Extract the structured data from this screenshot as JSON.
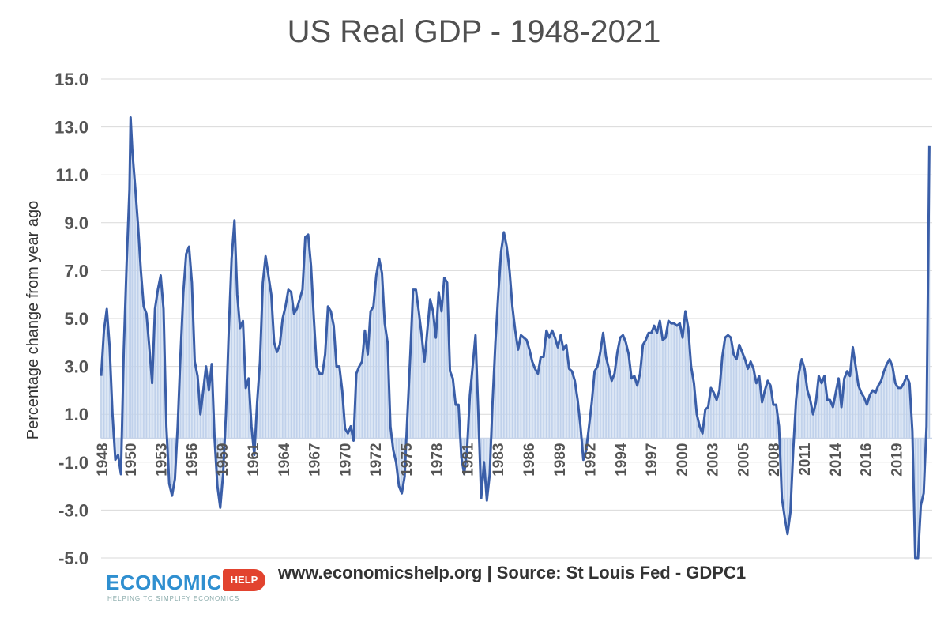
{
  "chart_data": {
    "type": "area",
    "title": "US Real GDP - 1948-2021",
    "xlabel": "",
    "ylabel": "Percentage change from year ago",
    "ylim": [
      -5.0,
      15.0
    ],
    "y_ticks": [
      "15.0",
      "13.0",
      "11.0",
      "9.0",
      "7.0",
      "5.0",
      "3.0",
      "1.0",
      "-1.0",
      "-3.0",
      "-5.0"
    ],
    "y_tick_values": [
      15,
      13,
      11,
      9,
      7,
      5,
      3,
      1,
      -1,
      -3,
      -5
    ],
    "x_tick_labels": [
      "1948",
      "1950",
      "1953",
      "1956",
      "1959",
      "1961",
      "1964",
      "1967",
      "1970",
      "1972",
      "1975",
      "1978",
      "1981",
      "1983",
      "1986",
      "1989",
      "1992",
      "1994",
      "1997",
      "2000",
      "2003",
      "2005",
      "2008",
      "2011",
      "2014",
      "2016",
      "2019"
    ],
    "x_tick_positions": [
      1948,
      1950.5,
      1953.2,
      1955.9,
      1958.6,
      1961.3,
      1964.0,
      1966.7,
      1969.4,
      1972.1,
      1974.8,
      1977.5,
      1980.2,
      1982.9,
      1985.6,
      1988.3,
      1991.0,
      1993.7,
      1996.4,
      1999.1,
      2001.8,
      2004.5,
      2007.2,
      2009.9,
      2012.6,
      2015.3,
      2018.0
    ],
    "xlim": [
      1948,
      2021.25
    ],
    "grid": true,
    "legend": "none",
    "series": [
      {
        "color": "#3a5ea8",
        "fill": "#c5d5ec",
        "points": [
          [
            1948.0,
            2.6
          ],
          [
            1948.25,
            4.5
          ],
          [
            1948.5,
            5.4
          ],
          [
            1948.75,
            3.8
          ],
          [
            1949.0,
            1.0
          ],
          [
            1949.25,
            -0.9
          ],
          [
            1949.5,
            -0.7
          ],
          [
            1949.75,
            -1.5
          ],
          [
            1950.0,
            3.7
          ],
          [
            1950.25,
            7.3
          ],
          [
            1950.5,
            10.4
          ],
          [
            1950.6,
            13.4
          ],
          [
            1950.75,
            12.0
          ],
          [
            1951.0,
            10.5
          ],
          [
            1951.25,
            8.9
          ],
          [
            1951.5,
            7.0
          ],
          [
            1951.75,
            5.5
          ],
          [
            1952.0,
            5.2
          ],
          [
            1952.25,
            3.8
          ],
          [
            1952.5,
            2.3
          ],
          [
            1952.75,
            5.4
          ],
          [
            1953.0,
            6.2
          ],
          [
            1953.25,
            6.8
          ],
          [
            1953.5,
            5.4
          ],
          [
            1953.75,
            0.5
          ],
          [
            1954.0,
            -1.9
          ],
          [
            1954.25,
            -2.4
          ],
          [
            1954.5,
            -1.7
          ],
          [
            1954.75,
            0.5
          ],
          [
            1955.0,
            3.5
          ],
          [
            1955.25,
            6.1
          ],
          [
            1955.5,
            7.7
          ],
          [
            1955.75,
            8.0
          ],
          [
            1956.0,
            6.5
          ],
          [
            1956.25,
            3.2
          ],
          [
            1956.5,
            2.6
          ],
          [
            1956.75,
            1.0
          ],
          [
            1957.0,
            2.0
          ],
          [
            1957.25,
            3.0
          ],
          [
            1957.5,
            2.0
          ],
          [
            1957.75,
            3.1
          ],
          [
            1958.0,
            0.0
          ],
          [
            1958.25,
            -2.0
          ],
          [
            1958.5,
            -2.9
          ],
          [
            1958.75,
            -1.5
          ],
          [
            1959.0,
            1.0
          ],
          [
            1959.25,
            4.5
          ],
          [
            1959.5,
            7.5
          ],
          [
            1959.75,
            9.1
          ],
          [
            1960.0,
            6.0
          ],
          [
            1960.25,
            4.6
          ],
          [
            1960.5,
            4.9
          ],
          [
            1960.75,
            2.1
          ],
          [
            1961.0,
            2.5
          ],
          [
            1961.25,
            0.5
          ],
          [
            1961.5,
            -0.7
          ],
          [
            1961.75,
            1.5
          ],
          [
            1962.0,
            3.2
          ],
          [
            1962.25,
            6.5
          ],
          [
            1962.5,
            7.6
          ],
          [
            1962.75,
            6.8
          ],
          [
            1963.0,
            6.0
          ],
          [
            1963.25,
            4.0
          ],
          [
            1963.5,
            3.6
          ],
          [
            1963.75,
            3.9
          ],
          [
            1964.0,
            5.0
          ],
          [
            1964.25,
            5.5
          ],
          [
            1964.5,
            6.2
          ],
          [
            1964.75,
            6.1
          ],
          [
            1965.0,
            5.2
          ],
          [
            1965.25,
            5.4
          ],
          [
            1965.5,
            5.8
          ],
          [
            1965.75,
            6.2
          ],
          [
            1966.0,
            8.4
          ],
          [
            1966.25,
            8.5
          ],
          [
            1966.5,
            7.2
          ],
          [
            1966.75,
            5.0
          ],
          [
            1967.0,
            3.0
          ],
          [
            1967.25,
            2.7
          ],
          [
            1967.5,
            2.7
          ],
          [
            1967.75,
            3.5
          ],
          [
            1968.0,
            5.5
          ],
          [
            1968.25,
            5.3
          ],
          [
            1968.5,
            4.7
          ],
          [
            1968.75,
            3.0
          ],
          [
            1969.0,
            3.0
          ],
          [
            1969.25,
            2.0
          ],
          [
            1969.5,
            0.4
          ],
          [
            1969.75,
            0.2
          ],
          [
            1970.0,
            0.5
          ],
          [
            1970.25,
            -0.1
          ],
          [
            1970.5,
            2.7
          ],
          [
            1970.75,
            3.0
          ],
          [
            1971.0,
            3.2
          ],
          [
            1971.25,
            4.5
          ],
          [
            1971.5,
            3.5
          ],
          [
            1971.75,
            5.3
          ],
          [
            1972.0,
            5.5
          ],
          [
            1972.25,
            6.8
          ],
          [
            1972.5,
            7.5
          ],
          [
            1972.75,
            6.9
          ],
          [
            1973.0,
            4.8
          ],
          [
            1973.25,
            4.0
          ],
          [
            1973.5,
            0.5
          ],
          [
            1973.75,
            -0.5
          ],
          [
            1974.0,
            -1.0
          ],
          [
            1974.25,
            -2.0
          ],
          [
            1974.5,
            -2.3
          ],
          [
            1974.75,
            -1.6
          ],
          [
            1975.0,
            1.0
          ],
          [
            1975.25,
            3.5
          ],
          [
            1975.5,
            6.2
          ],
          [
            1975.75,
            6.2
          ],
          [
            1976.0,
            5.3
          ],
          [
            1976.25,
            4.3
          ],
          [
            1976.5,
            3.2
          ],
          [
            1976.75,
            4.5
          ],
          [
            1977.0,
            5.8
          ],
          [
            1977.25,
            5.3
          ],
          [
            1977.5,
            4.2
          ],
          [
            1977.75,
            6.1
          ],
          [
            1978.0,
            5.3
          ],
          [
            1978.25,
            6.7
          ],
          [
            1978.5,
            6.5
          ],
          [
            1978.75,
            2.8
          ],
          [
            1979.0,
            2.5
          ],
          [
            1979.25,
            1.4
          ],
          [
            1979.5,
            1.4
          ],
          [
            1979.75,
            -0.8
          ],
          [
            1980.0,
            -1.5
          ],
          [
            1980.25,
            -0.5
          ],
          [
            1980.5,
            1.8
          ],
          [
            1980.75,
            3.0
          ],
          [
            1981.0,
            4.3
          ],
          [
            1981.25,
            1.0
          ],
          [
            1981.5,
            -2.5
          ],
          [
            1981.75,
            -1.0
          ],
          [
            1982.0,
            -2.6
          ],
          [
            1982.25,
            -1.5
          ],
          [
            1982.5,
            1.5
          ],
          [
            1982.75,
            4.0
          ],
          [
            1983.0,
            6.0
          ],
          [
            1983.25,
            7.8
          ],
          [
            1983.5,
            8.6
          ],
          [
            1983.75,
            8.0
          ],
          [
            1984.0,
            7.0
          ],
          [
            1984.25,
            5.5
          ],
          [
            1984.5,
            4.5
          ],
          [
            1984.75,
            3.7
          ],
          [
            1985.0,
            4.3
          ],
          [
            1985.25,
            4.2
          ],
          [
            1985.5,
            4.1
          ],
          [
            1985.75,
            3.7
          ],
          [
            1986.0,
            3.2
          ],
          [
            1986.25,
            2.9
          ],
          [
            1986.5,
            2.7
          ],
          [
            1986.75,
            3.4
          ],
          [
            1987.0,
            3.4
          ],
          [
            1987.25,
            4.5
          ],
          [
            1987.5,
            4.2
          ],
          [
            1987.75,
            4.5
          ],
          [
            1988.0,
            4.2
          ],
          [
            1988.25,
            3.8
          ],
          [
            1988.5,
            4.3
          ],
          [
            1988.75,
            3.7
          ],
          [
            1989.0,
            3.9
          ],
          [
            1989.25,
            2.9
          ],
          [
            1989.5,
            2.8
          ],
          [
            1989.75,
            2.4
          ],
          [
            1990.0,
            1.6
          ],
          [
            1990.25,
            0.5
          ],
          [
            1990.5,
            -0.9
          ],
          [
            1990.75,
            -0.5
          ],
          [
            1991.0,
            0.5
          ],
          [
            1991.25,
            1.5
          ],
          [
            1991.5,
            2.8
          ],
          [
            1991.75,
            3.0
          ],
          [
            1992.0,
            3.6
          ],
          [
            1992.25,
            4.4
          ],
          [
            1992.5,
            3.4
          ],
          [
            1992.75,
            2.9
          ],
          [
            1993.0,
            2.4
          ],
          [
            1993.25,
            2.7
          ],
          [
            1993.5,
            3.6
          ],
          [
            1993.75,
            4.2
          ],
          [
            1994.0,
            4.3
          ],
          [
            1994.25,
            4.0
          ],
          [
            1994.5,
            3.5
          ],
          [
            1994.75,
            2.5
          ],
          [
            1995.0,
            2.6
          ],
          [
            1995.25,
            2.2
          ],
          [
            1995.5,
            2.7
          ],
          [
            1995.75,
            3.9
          ],
          [
            1996.0,
            4.1
          ],
          [
            1996.25,
            4.4
          ],
          [
            1996.5,
            4.4
          ],
          [
            1996.75,
            4.7
          ],
          [
            1997.0,
            4.4
          ],
          [
            1997.25,
            4.9
          ],
          [
            1997.5,
            4.1
          ],
          [
            1997.75,
            4.2
          ],
          [
            1998.0,
            4.9
          ],
          [
            1998.25,
            4.8
          ],
          [
            1998.5,
            4.8
          ],
          [
            1998.75,
            4.7
          ],
          [
            1999.0,
            4.8
          ],
          [
            1999.25,
            4.2
          ],
          [
            1999.5,
            5.3
          ],
          [
            1999.75,
            4.6
          ],
          [
            2000.0,
            3.0
          ],
          [
            2000.25,
            2.3
          ],
          [
            2000.5,
            1.0
          ],
          [
            2000.75,
            0.5
          ],
          [
            2001.0,
            0.2
          ],
          [
            2001.25,
            1.2
          ],
          [
            2001.5,
            1.3
          ],
          [
            2001.75,
            2.1
          ],
          [
            2002.0,
            1.9
          ],
          [
            2002.25,
            1.6
          ],
          [
            2002.5,
            2.0
          ],
          [
            2002.75,
            3.4
          ],
          [
            2003.0,
            4.2
          ],
          [
            2003.25,
            4.3
          ],
          [
            2003.5,
            4.2
          ],
          [
            2003.75,
            3.5
          ],
          [
            2004.0,
            3.3
          ],
          [
            2004.25,
            3.9
          ],
          [
            2004.5,
            3.6
          ],
          [
            2004.75,
            3.3
          ],
          [
            2005.0,
            2.9
          ],
          [
            2005.25,
            3.2
          ],
          [
            2005.5,
            2.9
          ],
          [
            2005.75,
            2.3
          ],
          [
            2006.0,
            2.6
          ],
          [
            2006.25,
            1.5
          ],
          [
            2006.5,
            2.0
          ],
          [
            2006.75,
            2.4
          ],
          [
            2007.0,
            2.2
          ],
          [
            2007.25,
            1.4
          ],
          [
            2007.5,
            1.4
          ],
          [
            2007.75,
            0.5
          ],
          [
            2008.0,
            -2.5
          ],
          [
            2008.25,
            -3.3
          ],
          [
            2008.5,
            -4.0
          ],
          [
            2008.75,
            -3.1
          ],
          [
            2009.0,
            -0.5
          ],
          [
            2009.25,
            1.6
          ],
          [
            2009.5,
            2.7
          ],
          [
            2009.75,
            3.3
          ],
          [
            2010.0,
            2.9
          ],
          [
            2010.25,
            2.0
          ],
          [
            2010.5,
            1.6
          ],
          [
            2010.75,
            1.0
          ],
          [
            2011.0,
            1.5
          ],
          [
            2011.25,
            2.6
          ],
          [
            2011.5,
            2.3
          ],
          [
            2011.75,
            2.6
          ],
          [
            2012.0,
            1.6
          ],
          [
            2012.25,
            1.6
          ],
          [
            2012.5,
            1.3
          ],
          [
            2012.75,
            1.9
          ],
          [
            2013.0,
            2.5
          ],
          [
            2013.25,
            1.3
          ],
          [
            2013.5,
            2.5
          ],
          [
            2013.75,
            2.8
          ],
          [
            2014.0,
            2.6
          ],
          [
            2014.25,
            3.8
          ],
          [
            2014.5,
            3.0
          ],
          [
            2014.75,
            2.2
          ],
          [
            2015.0,
            1.9
          ],
          [
            2015.25,
            1.7
          ],
          [
            2015.5,
            1.4
          ],
          [
            2015.75,
            1.8
          ],
          [
            2016.0,
            2.0
          ],
          [
            2016.25,
            1.9
          ],
          [
            2016.5,
            2.2
          ],
          [
            2016.75,
            2.4
          ],
          [
            2017.0,
            2.8
          ],
          [
            2017.25,
            3.1
          ],
          [
            2017.5,
            3.3
          ],
          [
            2017.75,
            3.0
          ],
          [
            2018.0,
            2.3
          ],
          [
            2018.25,
            2.1
          ],
          [
            2018.5,
            2.1
          ],
          [
            2018.75,
            2.3
          ],
          [
            2019.0,
            2.6
          ],
          [
            2019.25,
            2.3
          ],
          [
            2019.5,
            0.3
          ],
          [
            2019.75,
            -5.0
          ],
          [
            2020.0,
            -5.0
          ],
          [
            2020.25,
            -2.8
          ],
          [
            2020.5,
            -2.3
          ],
          [
            2020.75,
            0.5
          ],
          [
            2021.0,
            12.2
          ]
        ]
      }
    ]
  },
  "footer": {
    "source_text": "www.economicshelp.org | Source: St Louis Fed - GDPC1",
    "logo_word": "ECONOMICS",
    "logo_tag": "HELP",
    "logo_tagline": "HELPING TO SIMPLIFY ECONOMICS"
  }
}
